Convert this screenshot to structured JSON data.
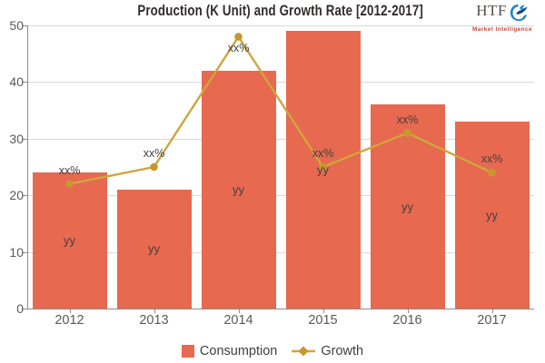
{
  "title": "Production (K Unit) and Growth Rate [2012-2017]",
  "logo": {
    "brand": "HTF",
    "tagline": "Market Intelligence",
    "icon": "bird-swirl-icon"
  },
  "chart_data": {
    "type": "bar",
    "categories": [
      "2012",
      "2013",
      "2014",
      "2015",
      "2016",
      "2017"
    ],
    "series": [
      {
        "name": "Consumption",
        "type": "bar",
        "values": [
          24,
          21,
          42,
          49,
          36,
          33
        ],
        "point_labels": [
          "yy",
          "yy",
          "yy",
          "yy",
          "yy",
          "yy"
        ]
      },
      {
        "name": "Growth",
        "type": "line",
        "values": [
          22,
          25,
          48,
          25,
          31,
          24
        ],
        "point_labels": [
          "xx%",
          "xx%",
          "xx%",
          "xx%",
          "xx%",
          "xx%"
        ]
      }
    ],
    "title": "Production (K Unit) and Growth Rate [2012-2017]",
    "xlabel": "",
    "ylabel": "",
    "ylim": [
      0,
      50
    ],
    "yticks": [
      0,
      10,
      20,
      30,
      40,
      50
    ],
    "grid": true,
    "legend_position": "bottom"
  },
  "colors": {
    "bar": "#E7694F",
    "line": "#CFA63D",
    "marker": "#C6982E",
    "grid": "#D9D9D9",
    "axis": "#8C8C8C",
    "tick_text": "#595959",
    "label_text": "#454040",
    "title_text": "#322C2C",
    "legend_text": "#3F3F3F",
    "logo_text": "#55504E",
    "logo_tagline": "#C44A3B",
    "logo_icon": "#1C86C8",
    "logo_icon_dark": "#0E4E78"
  }
}
